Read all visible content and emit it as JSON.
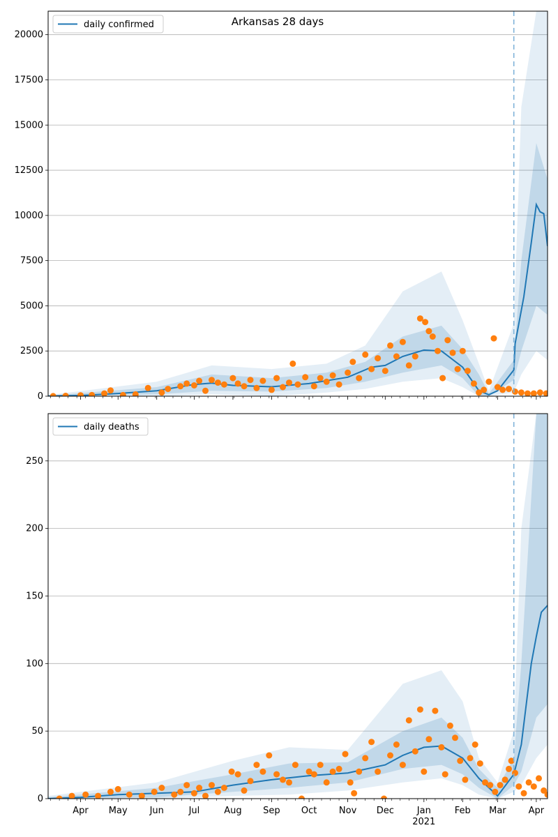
{
  "chart_data": [
    {
      "type": "line",
      "title": "Arkansas 28 days",
      "legend": {
        "label": "daily confirmed",
        "placement": "top-left"
      },
      "ylim": [
        0,
        21300
      ],
      "yticks": [
        0,
        2500,
        5000,
        7500,
        10000,
        12500,
        15000,
        17500,
        20000
      ],
      "grid": "horizontal",
      "forecast_start": "2021-03-14",
      "model_line": [
        [
          "2020-03-06",
          10
        ],
        [
          "2020-04-01",
          40
        ],
        [
          "2020-05-01",
          150
        ],
        [
          "2020-06-01",
          300
        ],
        [
          "2020-07-01",
          650
        ],
        [
          "2020-07-15",
          720
        ],
        [
          "2020-08-01",
          600
        ],
        [
          "2020-09-01",
          520
        ],
        [
          "2020-10-01",
          700
        ],
        [
          "2020-11-01",
          1050
        ],
        [
          "2020-11-20",
          1600
        ],
        [
          "2020-12-01",
          1700
        ],
        [
          "2020-12-15",
          2200
        ],
        [
          "2021-01-01",
          2550
        ],
        [
          "2021-01-15",
          2500
        ],
        [
          "2021-02-01",
          1600
        ],
        [
          "2021-02-14",
          300
        ],
        [
          "2021-02-22",
          80
        ],
        [
          "2021-03-01",
          300
        ],
        [
          "2021-03-14",
          1450
        ],
        [
          "2021-03-15",
          2900
        ],
        [
          "2021-03-22",
          5500
        ],
        [
          "2021-03-28",
          8500
        ],
        [
          "2021-04-01",
          10600
        ],
        [
          "2021-04-04",
          10200
        ],
        [
          "2021-04-07",
          10100
        ],
        [
          "2021-04-10",
          8300
        ]
      ],
      "band_inner": [
        [
          "2020-03-06",
          0,
          30
        ],
        [
          "2020-06-01",
          100,
          500
        ],
        [
          "2020-07-15",
          300,
          1200
        ],
        [
          "2020-09-01",
          250,
          1000
        ],
        [
          "2020-10-15",
          450,
          1300
        ],
        [
          "2020-11-15",
          800,
          1900
        ],
        [
          "2020-12-15",
          1300,
          3300
        ],
        [
          "2021-01-15",
          1700,
          3900
        ],
        [
          "2021-02-01",
          1000,
          2600
        ],
        [
          "2021-02-14",
          0,
          1200
        ],
        [
          "2021-02-22",
          0,
          150
        ],
        [
          "2021-03-14",
          900,
          2000
        ],
        [
          "2021-03-20",
          2500,
          7500
        ],
        [
          "2021-04-01",
          5000,
          14000
        ],
        [
          "2021-04-10",
          4500,
          12000
        ]
      ],
      "band_outer": [
        [
          "2020-03-06",
          0,
          60
        ],
        [
          "2020-06-01",
          0,
          800
        ],
        [
          "2020-07-15",
          100,
          1700
        ],
        [
          "2020-09-01",
          0,
          1500
        ],
        [
          "2020-10-15",
          200,
          1800
        ],
        [
          "2020-11-15",
          400,
          2800
        ],
        [
          "2020-12-15",
          800,
          5800
        ],
        [
          "2021-01-15",
          1000,
          6900
        ],
        [
          "2021-02-01",
          500,
          4200
        ],
        [
          "2021-02-14",
          0,
          1800
        ],
        [
          "2021-02-22",
          0,
          300
        ],
        [
          "2021-03-14",
          200,
          4000
        ],
        [
          "2021-03-20",
          1200,
          16000
        ],
        [
          "2021-04-01",
          2500,
          21300
        ],
        [
          "2021-04-10",
          2000,
          21300
        ]
      ],
      "observed_points": [
        [
          "2020-03-10",
          5
        ],
        [
          "2020-03-20",
          20
        ],
        [
          "2020-04-01",
          50
        ],
        [
          "2020-04-10",
          60
        ],
        [
          "2020-04-20",
          150
        ],
        [
          "2020-04-25",
          320
        ],
        [
          "2020-05-05",
          60
        ],
        [
          "2020-05-15",
          100
        ],
        [
          "2020-05-25",
          450
        ],
        [
          "2020-06-05",
          200
        ],
        [
          "2020-06-10",
          400
        ],
        [
          "2020-06-20",
          550
        ],
        [
          "2020-06-25",
          700
        ],
        [
          "2020-07-01",
          600
        ],
        [
          "2020-07-05",
          850
        ],
        [
          "2020-07-10",
          300
        ],
        [
          "2020-07-15",
          900
        ],
        [
          "2020-07-20",
          750
        ],
        [
          "2020-07-25",
          650
        ],
        [
          "2020-08-01",
          1000
        ],
        [
          "2020-08-05",
          700
        ],
        [
          "2020-08-10",
          550
        ],
        [
          "2020-08-15",
          900
        ],
        [
          "2020-08-20",
          450
        ],
        [
          "2020-08-25",
          850
        ],
        [
          "2020-09-01",
          350
        ],
        [
          "2020-09-05",
          1000
        ],
        [
          "2020-09-10",
          500
        ],
        [
          "2020-09-15",
          750
        ],
        [
          "2020-09-18",
          1800
        ],
        [
          "2020-09-22",
          650
        ],
        [
          "2020-09-28",
          1050
        ],
        [
          "2020-10-05",
          550
        ],
        [
          "2020-10-10",
          1000
        ],
        [
          "2020-10-15",
          800
        ],
        [
          "2020-10-20",
          1150
        ],
        [
          "2020-10-25",
          650
        ],
        [
          "2020-11-01",
          1300
        ],
        [
          "2020-11-05",
          1900
        ],
        [
          "2020-11-10",
          1000
        ],
        [
          "2020-11-15",
          2300
        ],
        [
          "2020-11-20",
          1500
        ],
        [
          "2020-11-25",
          2100
        ],
        [
          "2020-12-01",
          1400
        ],
        [
          "2020-12-05",
          2800
        ],
        [
          "2020-12-10",
          2200
        ],
        [
          "2020-12-15",
          3000
        ],
        [
          "2020-12-20",
          1700
        ],
        [
          "2020-12-25",
          2200
        ],
        [
          "2020-12-29",
          4300
        ],
        [
          "2021-01-02",
          4100
        ],
        [
          "2021-01-05",
          3600
        ],
        [
          "2021-01-08",
          3300
        ],
        [
          "2021-01-12",
          2500
        ],
        [
          "2021-01-16",
          1000
        ],
        [
          "2021-01-20",
          3100
        ],
        [
          "2021-01-24",
          2400
        ],
        [
          "2021-01-28",
          1500
        ],
        [
          "2021-02-01",
          2500
        ],
        [
          "2021-02-05",
          1400
        ],
        [
          "2021-02-10",
          700
        ],
        [
          "2021-02-14",
          200
        ],
        [
          "2021-02-18",
          350
        ],
        [
          "2021-02-22",
          800
        ],
        [
          "2021-02-26",
          3200
        ],
        [
          "2021-03-01",
          500
        ],
        [
          "2021-03-05",
          350
        ],
        [
          "2021-03-10",
          400
        ],
        [
          "2021-03-15",
          250
        ],
        [
          "2021-03-20",
          200
        ],
        [
          "2021-03-25",
          150
        ],
        [
          "2021-03-30",
          150
        ],
        [
          "2021-04-04",
          200
        ],
        [
          "2021-04-09",
          150
        ]
      ]
    },
    {
      "type": "line",
      "title": "",
      "legend": {
        "label": "daily deaths",
        "placement": "top-left"
      },
      "ylim": [
        0,
        285
      ],
      "yticks": [
        0,
        50,
        100,
        150,
        200,
        250
      ],
      "grid": "horizontal",
      "forecast_start": "2021-03-14",
      "model_line": [
        [
          "2020-03-06",
          0
        ],
        [
          "2020-04-01",
          1
        ],
        [
          "2020-05-01",
          3
        ],
        [
          "2020-06-01",
          4
        ],
        [
          "2020-07-01",
          5
        ],
        [
          "2020-08-01",
          10
        ],
        [
          "2020-09-01",
          14
        ],
        [
          "2020-10-01",
          17
        ],
        [
          "2020-11-01",
          19
        ],
        [
          "2020-12-01",
          25
        ],
        [
          "2020-12-15",
          32
        ],
        [
          "2021-01-01",
          38
        ],
        [
          "2021-01-15",
          39
        ],
        [
          "2021-02-01",
          30
        ],
        [
          "2021-02-14",
          15
        ],
        [
          "2021-03-01",
          2
        ],
        [
          "2021-03-14",
          18
        ],
        [
          "2021-03-20",
          40
        ],
        [
          "2021-03-28",
          100
        ],
        [
          "2021-04-01",
          120
        ],
        [
          "2021-04-05",
          138
        ],
        [
          "2021-04-10",
          143
        ]
      ],
      "band_inner": [
        [
          "2020-03-06",
          0,
          1
        ],
        [
          "2020-06-01",
          1,
          8
        ],
        [
          "2020-08-01",
          5,
          18
        ],
        [
          "2020-09-15",
          8,
          26
        ],
        [
          "2020-11-01",
          12,
          27
        ],
        [
          "2020-12-15",
          22,
          50
        ],
        [
          "2021-01-15",
          25,
          60
        ],
        [
          "2021-02-01",
          18,
          45
        ],
        [
          "2021-02-14",
          8,
          22
        ],
        [
          "2021-03-01",
          0,
          8
        ],
        [
          "2021-03-14",
          10,
          30
        ],
        [
          "2021-03-20",
          20,
          100
        ],
        [
          "2021-04-01",
          60,
          285
        ],
        [
          "2021-04-10",
          70,
          285
        ]
      ],
      "band_outer": [
        [
          "2020-03-06",
          0,
          2
        ],
        [
          "2020-06-01",
          0,
          12
        ],
        [
          "2020-08-01",
          2,
          28
        ],
        [
          "2020-09-15",
          3,
          38
        ],
        [
          "2020-11-01",
          6,
          36
        ],
        [
          "2020-12-15",
          12,
          85
        ],
        [
          "2021-01-15",
          15,
          95
        ],
        [
          "2021-02-01",
          10,
          72
        ],
        [
          "2021-02-14",
          3,
          30
        ],
        [
          "2021-03-01",
          0,
          12
        ],
        [
          "2021-03-14",
          5,
          50
        ],
        [
          "2021-03-20",
          10,
          200
        ],
        [
          "2021-04-01",
          30,
          285
        ],
        [
          "2021-04-10",
          40,
          285
        ]
      ],
      "observed_points": [
        [
          "2020-03-15",
          0
        ],
        [
          "2020-03-25",
          2
        ],
        [
          "2020-04-05",
          3
        ],
        [
          "2020-04-15",
          2
        ],
        [
          "2020-04-25",
          5
        ],
        [
          "2020-05-01",
          7
        ],
        [
          "2020-05-10",
          3
        ],
        [
          "2020-05-20",
          2
        ],
        [
          "2020-05-30",
          5
        ],
        [
          "2020-06-05",
          8
        ],
        [
          "2020-06-15",
          3
        ],
        [
          "2020-06-20",
          5
        ],
        [
          "2020-06-25",
          10
        ],
        [
          "2020-07-01",
          4
        ],
        [
          "2020-07-05",
          8
        ],
        [
          "2020-07-10",
          2
        ],
        [
          "2020-07-15",
          10
        ],
        [
          "2020-07-20",
          5
        ],
        [
          "2020-07-25",
          8
        ],
        [
          "2020-07-31",
          20
        ],
        [
          "2020-08-05",
          18
        ],
        [
          "2020-08-10",
          6
        ],
        [
          "2020-08-15",
          13
        ],
        [
          "2020-08-20",
          25
        ],
        [
          "2020-08-25",
          20
        ],
        [
          "2020-08-30",
          32
        ],
        [
          "2020-09-05",
          18
        ],
        [
          "2020-09-10",
          14
        ],
        [
          "2020-09-15",
          12
        ],
        [
          "2020-09-20",
          25
        ],
        [
          "2020-09-25",
          0
        ],
        [
          "2020-10-01",
          20
        ],
        [
          "2020-10-05",
          18
        ],
        [
          "2020-10-10",
          25
        ],
        [
          "2020-10-15",
          12
        ],
        [
          "2020-10-20",
          20
        ],
        [
          "2020-10-25",
          22
        ],
        [
          "2020-10-30",
          33
        ],
        [
          "2020-11-03",
          12
        ],
        [
          "2020-11-06",
          4
        ],
        [
          "2020-11-10",
          20
        ],
        [
          "2020-11-15",
          30
        ],
        [
          "2020-11-20",
          42
        ],
        [
          "2020-11-25",
          20
        ],
        [
          "2020-11-30",
          0
        ],
        [
          "2020-12-05",
          32
        ],
        [
          "2020-12-10",
          40
        ],
        [
          "2020-12-15",
          25
        ],
        [
          "2020-12-20",
          58
        ],
        [
          "2020-12-25",
          35
        ],
        [
          "2020-12-29",
          66
        ],
        [
          "2021-01-01",
          20
        ],
        [
          "2021-01-05",
          44
        ],
        [
          "2021-01-10",
          65
        ],
        [
          "2021-01-15",
          38
        ],
        [
          "2021-01-18",
          18
        ],
        [
          "2021-01-22",
          54
        ],
        [
          "2021-01-26",
          45
        ],
        [
          "2021-01-30",
          28
        ],
        [
          "2021-02-03",
          14
        ],
        [
          "2021-02-07",
          30
        ],
        [
          "2021-02-11",
          40
        ],
        [
          "2021-02-15",
          26
        ],
        [
          "2021-02-19",
          12
        ],
        [
          "2021-02-23",
          10
        ],
        [
          "2021-02-27",
          5
        ],
        [
          "2021-03-03",
          10
        ],
        [
          "2021-03-07",
          14
        ],
        [
          "2021-03-10",
          22
        ],
        [
          "2021-03-12",
          28
        ],
        [
          "2021-03-15",
          19
        ],
        [
          "2021-03-18",
          9
        ],
        [
          "2021-03-22",
          4
        ],
        [
          "2021-03-26",
          12
        ],
        [
          "2021-03-30",
          9
        ],
        [
          "2021-04-03",
          15
        ],
        [
          "2021-04-07",
          6
        ],
        [
          "2021-04-10",
          3
        ]
      ]
    }
  ],
  "x_axis": {
    "range": [
      "2020-03-06",
      "2021-04-10"
    ],
    "months": [
      {
        "label": "Apr",
        "date": "2020-04-01"
      },
      {
        "label": "May",
        "date": "2020-05-01"
      },
      {
        "label": "Jun",
        "date": "2020-06-01"
      },
      {
        "label": "Jul",
        "date": "2020-07-01"
      },
      {
        "label": "Aug",
        "date": "2020-08-01"
      },
      {
        "label": "Sep",
        "date": "2020-09-01"
      },
      {
        "label": "Oct",
        "date": "2020-10-01"
      },
      {
        "label": "Nov",
        "date": "2020-11-01"
      },
      {
        "label": "Dec",
        "date": "2020-12-01"
      },
      {
        "label": "Jan",
        "date": "2021-01-01"
      },
      {
        "label": "Feb",
        "date": "2021-02-01"
      },
      {
        "label": "Mar",
        "date": "2021-03-01"
      },
      {
        "label": "Apr",
        "date": "2021-04-01"
      }
    ],
    "year_label": "2021"
  },
  "colors": {
    "line": "#1f77b4",
    "points": "#ff7f0e",
    "band": "#1f77b4",
    "grid": "#b0b0b0",
    "forecast_line": "#7fb2d9"
  }
}
